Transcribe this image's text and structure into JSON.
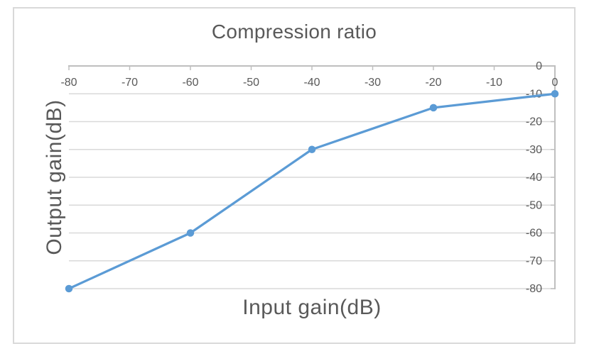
{
  "chart_data": {
    "type": "line",
    "title": "Compression ratio",
    "xlabel": "Input gain(dB)",
    "ylabel": "Output gain(dB)",
    "x": [
      -80,
      -60,
      -40,
      -20,
      0
    ],
    "y": [
      -80,
      -60,
      -30,
      -15,
      -10
    ],
    "x_ticks": [
      -80,
      -70,
      -60,
      -50,
      -40,
      -30,
      -20,
      -10,
      0
    ],
    "y_ticks": [
      0,
      -10,
      -20,
      -30,
      -40,
      -50,
      -60,
      -70,
      -80
    ],
    "xlim": [
      -80,
      0
    ],
    "ylim": [
      -80,
      0
    ],
    "x_axis_position": "top",
    "y_axis_position": "right",
    "grid": true,
    "markers": true,
    "legend_position": "none",
    "colors": {
      "line": "#5B9BD5",
      "marker": "#5B9BD5",
      "axis": "#BFBFBF",
      "grid": "#D9D9D9",
      "text": "#595959",
      "border": "#D9D9D9",
      "background": "#FFFFFF"
    }
  }
}
